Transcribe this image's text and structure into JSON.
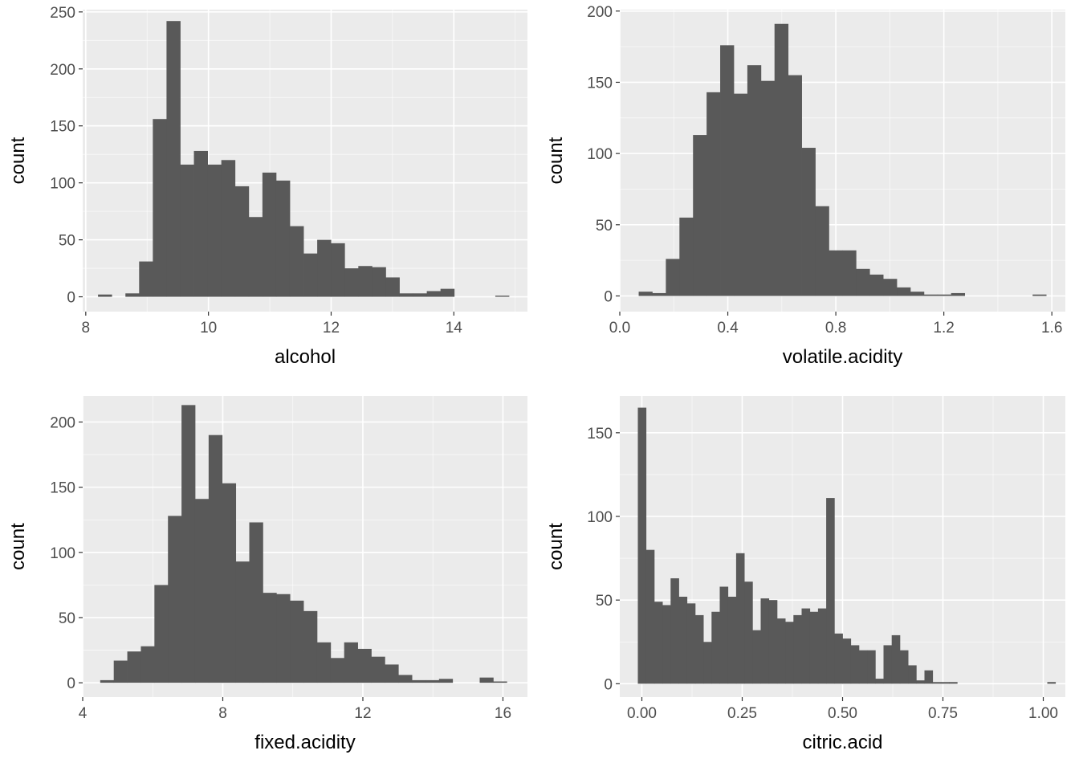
{
  "colors": {
    "panel": "#ebebeb",
    "grid_major": "#ffffff",
    "bar": "#595959",
    "tick": "#333333"
  },
  "chart_data": [
    {
      "type": "bar",
      "xlabel": "alcohol",
      "ylabel": "count",
      "xlim": [
        7.95,
        15.2
      ],
      "ylim": [
        -13,
        252
      ],
      "x_ticks": [
        8,
        10,
        12,
        14
      ],
      "y_ticks": [
        0,
        50,
        100,
        150,
        200,
        250
      ],
      "bin_start": 8.2,
      "bin_width": 0.2233,
      "values": [
        2,
        0,
        3,
        31,
        156,
        242,
        116,
        128,
        116,
        120,
        97,
        70,
        109,
        102,
        62,
        38,
        50,
        47,
        25,
        27,
        26,
        17,
        3,
        3,
        5,
        7,
        0,
        0,
        0,
        1
      ]
    },
    {
      "type": "bar",
      "xlabel": "volatile.acidity",
      "ylabel": "count",
      "xlim": [
        0.0,
        1.65
      ],
      "ylim": [
        -11,
        201
      ],
      "x_ticks": [
        "0.0",
        "0.4",
        "0.8",
        "1.2",
        "1.6"
      ],
      "y_ticks": [
        0,
        50,
        100,
        150,
        200
      ],
      "bin_start": 0.07,
      "bin_width": 0.0503,
      "values": [
        3,
        2,
        26,
        55,
        113,
        143,
        176,
        142,
        162,
        151,
        191,
        155,
        104,
        63,
        32,
        32,
        19,
        15,
        12,
        6,
        3,
        1,
        1,
        2,
        0,
        0,
        0,
        0,
        0,
        1
      ]
    },
    {
      "type": "bar",
      "xlabel": "fixed.acidity",
      "ylabel": "count",
      "xlim": [
        4.0,
        16.7
      ],
      "ylim": [
        -11,
        220
      ],
      "x_ticks": [
        4,
        8,
        12,
        16
      ],
      "y_ticks": [
        0,
        50,
        100,
        150,
        200
      ],
      "bin_start": 4.5,
      "bin_width": 0.387,
      "values": [
        2,
        17,
        24,
        28,
        75,
        128,
        213,
        141,
        190,
        153,
        93,
        123,
        69,
        68,
        63,
        55,
        31,
        19,
        31,
        26,
        20,
        14,
        6,
        2,
        2,
        3,
        0,
        0,
        4,
        1
      ]
    },
    {
      "type": "bar",
      "xlabel": "citric.acid",
      "ylabel": "count",
      "xlim": [
        -0.055,
        1.055
      ],
      "ylim": [
        -8,
        172
      ],
      "x_ticks": [
        "0.00",
        "0.25",
        "0.50",
        "0.75",
        "1.00"
      ],
      "y_ticks": [
        0,
        50,
        100,
        150
      ],
      "bin_start": -0.01,
      "bin_width": 0.0204,
      "values": [
        165,
        80,
        49,
        47,
        63,
        52,
        48,
        41,
        25,
        43,
        58,
        52,
        78,
        61,
        32,
        51,
        50,
        39,
        37,
        41,
        45,
        43,
        45,
        111,
        30,
        27,
        23,
        20,
        20,
        3,
        23,
        29,
        20,
        11,
        2,
        8,
        1,
        1,
        1,
        0,
        0,
        0,
        0,
        0,
        0,
        0,
        0,
        0,
        0,
        0,
        1
      ]
    }
  ]
}
